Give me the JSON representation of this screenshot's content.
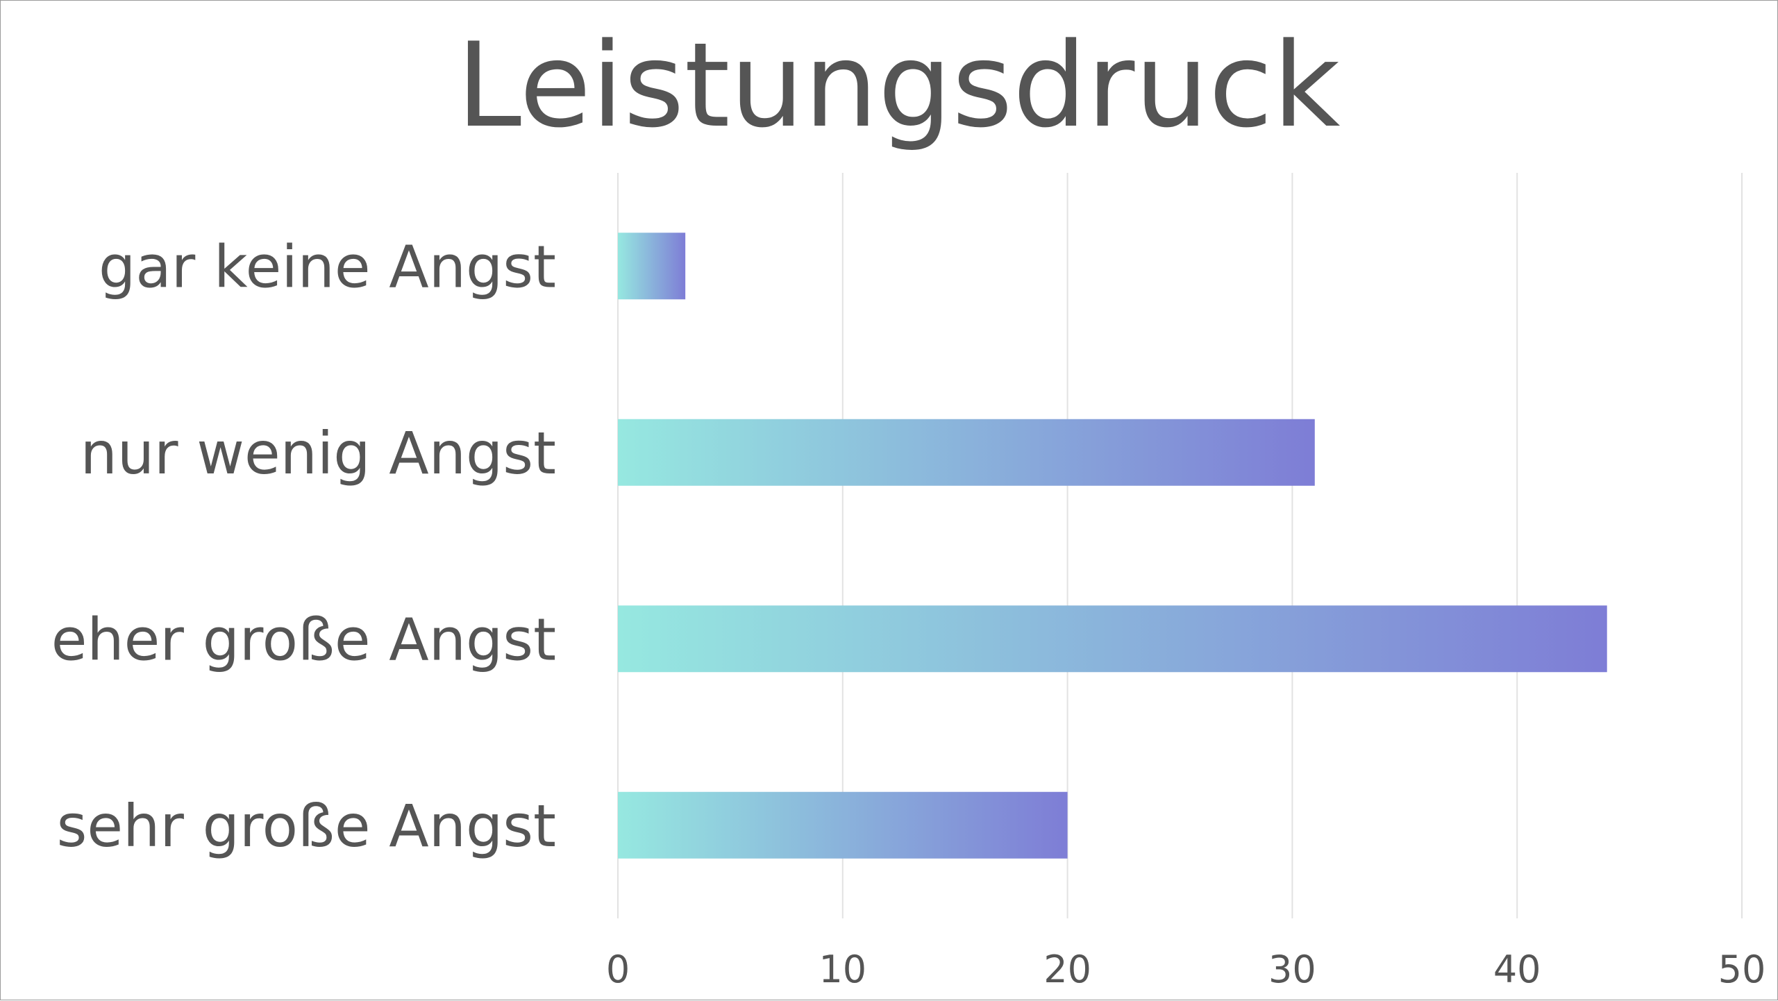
{
  "chart_data": {
    "type": "bar",
    "orientation": "horizontal",
    "title": "Leistungsdruck",
    "categories": [
      "gar keine Angst",
      "nur wenig Angst",
      "eher große Angst",
      "sehr große Angst"
    ],
    "values": [
      3,
      31,
      44,
      20
    ],
    "xlabel": "",
    "ylabel": "",
    "xlim": [
      0,
      50
    ],
    "x_ticks": [
      0,
      10,
      20,
      30,
      40,
      50
    ],
    "grid": true,
    "legend": "none",
    "colors": {
      "gradient_start": "#96E8E0",
      "gradient_end": "#7E7DD6",
      "text": "#555555",
      "grid": "#E2E2E2"
    }
  }
}
